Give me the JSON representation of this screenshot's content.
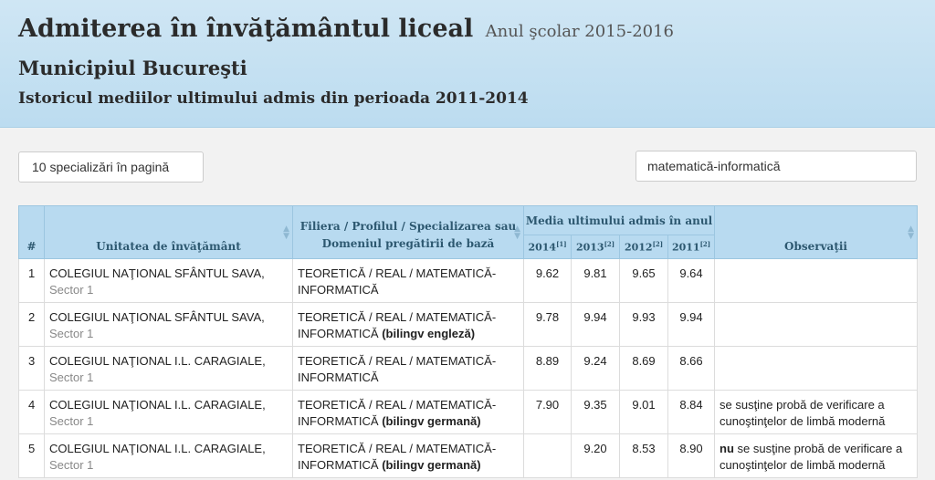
{
  "header": {
    "title": "Admiterea în învăţământul liceal",
    "year": "Anul şcolar 2015-2016",
    "city": "Municipiul Bucureşti",
    "subtitle": "Istoricul mediilor ultimului admis din perioada 2011-2014"
  },
  "controls": {
    "per_page": "10 specializări în pagină",
    "search_value": "matematică-informatică"
  },
  "table": {
    "col_num": "#",
    "col_unit": "Unitatea de învăţământ",
    "col_spec_line1": "Filiera / Profilul / Specializarea sau",
    "col_spec_line2": "Domeniul pregătirii de bază",
    "col_media": "Media ultimului admis în anul",
    "col_obs": "Observaţii",
    "years": [
      {
        "year": "2014",
        "ref": "[1]"
      },
      {
        "year": "2013",
        "ref": "[2]"
      },
      {
        "year": "2012",
        "ref": "[2]"
      },
      {
        "year": "2011",
        "ref": "[2]"
      }
    ],
    "rows": [
      {
        "num": "1",
        "school": "COLEGIUL NAŢIONAL SFÂNTUL SAVA,",
        "sector": "Sector 1",
        "spec1": "TEORETICĂ / REAL / MATEMATICĂ-",
        "spec2": "INFORMATICĂ",
        "spec_extra": "",
        "v2014": "9.62",
        "v2013": "9.81",
        "v2012": "9.65",
        "v2011": "9.64",
        "obs_bold": "",
        "obs1": "",
        "obs2": ""
      },
      {
        "num": "2",
        "school": "COLEGIUL NAŢIONAL SFÂNTUL SAVA,",
        "sector": "Sector 1",
        "spec1": "TEORETICĂ / REAL / MATEMATICĂ-",
        "spec2": "INFORMATICĂ",
        "spec_extra": "(bilingv engleză)",
        "v2014": "9.78",
        "v2013": "9.94",
        "v2012": "9.93",
        "v2011": "9.94",
        "obs_bold": "",
        "obs1": "",
        "obs2": ""
      },
      {
        "num": "3",
        "school": "COLEGIUL NAŢIONAL I.L. CARAGIALE,",
        "sector": "Sector 1",
        "spec1": "TEORETICĂ / REAL / MATEMATICĂ-",
        "spec2": "INFORMATICĂ",
        "spec_extra": "",
        "v2014": "8.89",
        "v2013": "9.24",
        "v2012": "8.69",
        "v2011": "8.66",
        "obs_bold": "",
        "obs1": "",
        "obs2": ""
      },
      {
        "num": "4",
        "school": "COLEGIUL NAŢIONAL I.L. CARAGIALE,",
        "sector": "Sector 1",
        "spec1": "TEORETICĂ / REAL / MATEMATICĂ-",
        "spec2": "INFORMATICĂ",
        "spec_extra": "(bilingv germană)",
        "v2014": "7.90",
        "v2013": "9.35",
        "v2012": "9.01",
        "v2011": "8.84",
        "obs_bold": "",
        "obs1": "se susţine probă de verificare a",
        "obs2": "cunoştinţelor de limbă modernă"
      },
      {
        "num": "5",
        "school": "COLEGIUL NAŢIONAL I.L. CARAGIALE,",
        "sector": "Sector 1",
        "spec1": "TEORETICĂ / REAL / MATEMATICĂ-",
        "spec2": "INFORMATICĂ",
        "spec_extra": "(bilingv germană)",
        "v2014": "",
        "v2013": "9.20",
        "v2012": "8.53",
        "v2011": "8.90",
        "obs_bold": "nu",
        "obs1": "se susţine probă de verificare a",
        "obs2": "cunoştinţelor de limbă modernă"
      }
    ]
  }
}
